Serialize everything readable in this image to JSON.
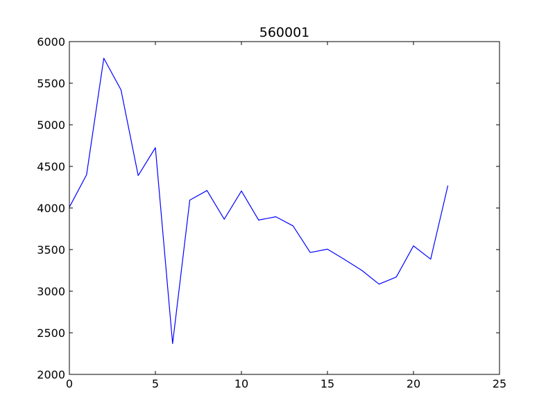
{
  "chart_data": {
    "type": "line",
    "title": "560001",
    "xlabel": "",
    "ylabel": "",
    "xlim": [
      0,
      25
    ],
    "ylim": [
      2000,
      6000
    ],
    "xticks": [
      0,
      5,
      10,
      15,
      20,
      25
    ],
    "yticks": [
      2000,
      2500,
      3000,
      3500,
      4000,
      4500,
      5000,
      5500,
      6000
    ],
    "grid": false,
    "series": [
      {
        "color": "#0000ff",
        "x": [
          0,
          1,
          2,
          3,
          4,
          5,
          6,
          7,
          8,
          9,
          10,
          11,
          12,
          13,
          14,
          15,
          16,
          17,
          18,
          19,
          20,
          21,
          22
        ],
        "y": [
          4010,
          4400,
          5800,
          5420,
          4390,
          4725,
          2370,
          4095,
          4210,
          3865,
          4205,
          3855,
          3895,
          3785,
          3465,
          3505,
          3380,
          3250,
          3085,
          3170,
          3545,
          3385,
          4270
        ]
      }
    ]
  }
}
